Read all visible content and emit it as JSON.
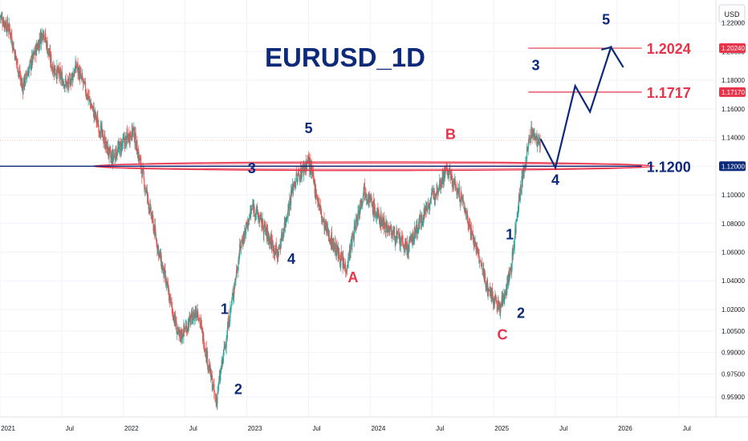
{
  "chart_data": {
    "type": "line",
    "title": "EURUSD_1D",
    "currency": "USD",
    "colors": {
      "up": "#26a69a",
      "down": "#ef5350",
      "wave": "#0d2a7a",
      "corrective": "#e8344a",
      "support_zone": "#e8344a",
      "support_line": "#0d2a7a",
      "grid": "#f0f3fa"
    },
    "ylim": [
      0.945,
      1.236
    ],
    "ytick_labels": [
      "1.22000",
      "1.20000",
      "1.18000",
      "1.16000",
      "1.14000",
      "1.12000",
      "1.10000",
      "1.08000",
      "1.06000",
      "1.04000",
      "1.02000",
      "1.00500",
      "0.99000",
      "0.97500",
      "0.95900"
    ],
    "ytick_values": [
      1.22,
      1.2,
      1.18,
      1.16,
      1.14,
      1.12,
      1.1,
      1.08,
      1.06,
      1.04,
      1.02,
      1.005,
      0.99,
      0.975,
      0.959
    ],
    "xlim": [
      2021.0,
      2026.8
    ],
    "x_ticks": [
      {
        "label": "2021",
        "x": 2021.0
      },
      {
        "label": "Jul",
        "x": 2021.5
      },
      {
        "label": "2022",
        "x": 2022.0
      },
      {
        "label": "Jul",
        "x": 2022.5
      },
      {
        "label": "2023",
        "x": 2023.0
      },
      {
        "label": "Jul",
        "x": 2023.5
      },
      {
        "label": "2024",
        "x": 2024.0
      },
      {
        "label": "Jul",
        "x": 2024.5
      },
      {
        "label": "2025",
        "x": 2025.0
      },
      {
        "label": "Jul",
        "x": 2025.5
      },
      {
        "label": "2026",
        "x": 2026.0
      },
      {
        "label": "Jul",
        "x": 2026.5
      }
    ],
    "price_path": [
      [
        2021.0,
        1.225
      ],
      [
        2021.08,
        1.215
      ],
      [
        2021.18,
        1.175
      ],
      [
        2021.35,
        1.215
      ],
      [
        2021.42,
        1.19
      ],
      [
        2021.55,
        1.176
      ],
      [
        2021.62,
        1.19
      ],
      [
        2021.9,
        1.125
      ],
      [
        2022.08,
        1.145
      ],
      [
        2022.3,
        1.055
      ],
      [
        2022.45,
        1.0
      ],
      [
        2022.6,
        1.02
      ],
      [
        2022.75,
        0.955
      ],
      [
        2022.95,
        1.065
      ],
      [
        2023.05,
        1.092
      ],
      [
        2023.25,
        1.058
      ],
      [
        2023.38,
        1.108
      ],
      [
        2023.5,
        1.124
      ],
      [
        2023.62,
        1.08
      ],
      [
        2023.8,
        1.048
      ],
      [
        2023.95,
        1.105
      ],
      [
        2024.05,
        1.086
      ],
      [
        2024.3,
        1.062
      ],
      [
        2024.45,
        1.09
      ],
      [
        2024.62,
        1.118
      ],
      [
        2024.75,
        1.095
      ],
      [
        2024.95,
        1.035
      ],
      [
        2025.05,
        1.02
      ],
      [
        2025.14,
        1.048
      ],
      [
        2025.2,
        1.095
      ],
      [
        2025.3,
        1.144
      ],
      [
        2025.38,
        1.135
      ]
    ],
    "support": {
      "value": 1.12,
      "label": "1.1200",
      "zone": [
        1.1175,
        1.1225
      ],
      "zone_x": [
        2021.75,
        2026.3
      ],
      "line_x": [
        2021.0,
        2026.2
      ]
    },
    "targets": [
      {
        "value": 1.1717,
        "label": "1.1717",
        "badge": "1.17170",
        "x_start": 2025.28
      },
      {
        "value": 1.2024,
        "label": "1.2024",
        "badge": "1.20240",
        "x_start": 2025.28
      }
    ],
    "last_price": 1.138,
    "projection": [
      [
        2025.38,
        1.139
      ],
      [
        2025.5,
        1.119
      ],
      [
        2025.66,
        1.176
      ],
      [
        2025.78,
        1.158
      ],
      [
        2025.95,
        1.203
      ],
      [
        2026.05,
        1.189
      ]
    ],
    "wave_labels": [
      {
        "text": "1",
        "x": 2022.82,
        "y": 1.017,
        "color": "wave"
      },
      {
        "text": "2",
        "x": 2022.93,
        "y": 0.961,
        "color": "wave"
      },
      {
        "text": "3",
        "x": 2023.04,
        "y": 1.115,
        "color": "wave"
      },
      {
        "text": "4",
        "x": 2023.36,
        "y": 1.052,
        "color": "wave"
      },
      {
        "text": "5",
        "x": 2023.5,
        "y": 1.143,
        "color": "wave"
      },
      {
        "text": "A",
        "x": 2023.86,
        "y": 1.039,
        "color": "corrective"
      },
      {
        "text": "B",
        "x": 2024.65,
        "y": 1.139,
        "color": "corrective"
      },
      {
        "text": "C",
        "x": 2025.07,
        "y": 0.999,
        "color": "corrective"
      },
      {
        "text": "1",
        "x": 2025.13,
        "y": 1.069,
        "color": "wave"
      },
      {
        "text": "2",
        "x": 2025.22,
        "y": 1.014,
        "color": "wave"
      },
      {
        "text": "3",
        "x": 2025.34,
        "y": 1.187,
        "color": "wave"
      },
      {
        "text": "4",
        "x": 2025.5,
        "y": 1.107,
        "color": "wave"
      },
      {
        "text": "5",
        "x": 2025.91,
        "y": 1.219,
        "color": "wave"
      }
    ]
  }
}
